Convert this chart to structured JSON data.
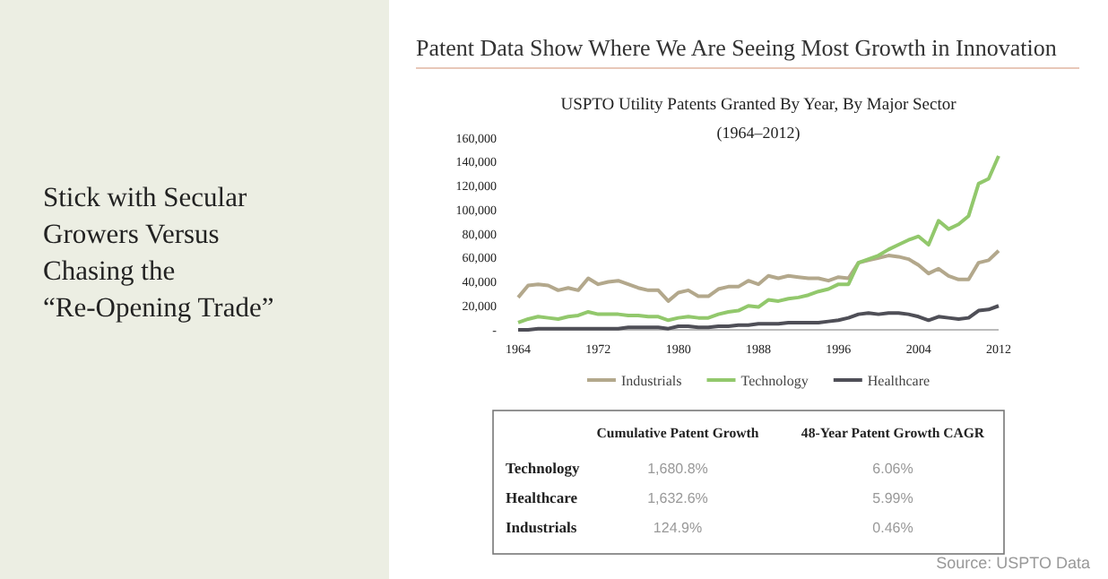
{
  "chart_data": [
    {
      "type": "line",
      "title": "USPTO Utility Patents Granted By Year, By Major Sector",
      "subtitle": "(1964–2012)",
      "x": [
        1964,
        1965,
        1966,
        1967,
        1968,
        1969,
        1970,
        1971,
        1972,
        1973,
        1974,
        1975,
        1976,
        1977,
        1978,
        1979,
        1980,
        1981,
        1982,
        1983,
        1984,
        1985,
        1986,
        1987,
        1988,
        1989,
        1990,
        1991,
        1992,
        1993,
        1994,
        1995,
        1996,
        1997,
        1998,
        1999,
        2000,
        2001,
        2002,
        2003,
        2004,
        2005,
        2006,
        2007,
        2008,
        2009,
        2010,
        2011,
        2012
      ],
      "series": [
        {
          "name": "Industrials",
          "color": "#b3a88c",
          "values": [
            27000,
            37000,
            38000,
            37000,
            33000,
            35000,
            33000,
            43000,
            38000,
            40000,
            41000,
            38000,
            35000,
            33000,
            33000,
            24000,
            31000,
            33000,
            28000,
            28000,
            34000,
            36000,
            36000,
            41000,
            38000,
            45000,
            43000,
            45000,
            44000,
            43000,
            43000,
            41000,
            44000,
            43000,
            56000,
            58000,
            60000,
            62000,
            61000,
            59000,
            54000,
            47000,
            51000,
            45000,
            42000,
            42000,
            56000,
            58000,
            66000
          ]
        },
        {
          "name": "Technology",
          "color": "#92c86c",
          "values": [
            6000,
            9000,
            11000,
            10000,
            9000,
            11000,
            12000,
            15000,
            13000,
            13000,
            13000,
            12000,
            12000,
            11000,
            11000,
            8000,
            10000,
            11000,
            10000,
            10000,
            13000,
            15000,
            16000,
            20000,
            19000,
            25000,
            24000,
            26000,
            27000,
            29000,
            32000,
            34000,
            38000,
            38000,
            56000,
            59000,
            62000,
            67000,
            71000,
            75000,
            78000,
            71000,
            91000,
            84000,
            88000,
            95000,
            122000,
            126000,
            145000
          ]
        },
        {
          "name": "Healthcare",
          "color": "#4f4f57",
          "values": [
            0,
            0,
            1000,
            1000,
            1000,
            1000,
            1000,
            1000,
            1000,
            1000,
            1000,
            2000,
            2000,
            2000,
            2000,
            1000,
            3000,
            3000,
            2000,
            2000,
            3000,
            3000,
            4000,
            4000,
            5000,
            5000,
            5000,
            6000,
            6000,
            6000,
            6000,
            7000,
            8000,
            10000,
            13000,
            14000,
            13000,
            14000,
            14000,
            13000,
            11000,
            8000,
            11000,
            10000,
            9000,
            10000,
            16000,
            17000,
            20000
          ]
        }
      ],
      "xlim": [
        1964,
        2012
      ],
      "xticks": [
        1964,
        1972,
        1980,
        1988,
        1996,
        2004,
        2012
      ],
      "ylim": [
        0,
        160000
      ],
      "yticks": [
        {
          "value": 0,
          "label": "-"
        },
        {
          "value": 20000,
          "label": "20,000"
        },
        {
          "value": 40000,
          "label": "40,000"
        },
        {
          "value": 60000,
          "label": "60,000"
        },
        {
          "value": 80000,
          "label": "80,000"
        },
        {
          "value": 100000,
          "label": "100,000"
        },
        {
          "value": 120000,
          "label": "120,000"
        },
        {
          "value": 140000,
          "label": "140,000"
        },
        {
          "value": 160000,
          "label": "160,000"
        }
      ],
      "legend": "bottom",
      "grid": false,
      "marker": "none",
      "line_style": "solid",
      "annotations": [
        "Stick with Secular Growers Versus Chasing the “Re-Opening Trade”",
        "Patent Data Show Where We Are Seeing Most Growth in Innovation",
        "Source: USPTO Data"
      ]
    },
    {
      "type": "other",
      "annotations": [
        "Cumulative Patent Growth",
        "48-Year Patent Growth CAGR",
        "Technology",
        "1,680.8%",
        "6.06%",
        "Healthcare",
        "1,632.6%",
        "5.99%",
        "Industrials",
        "124.9%",
        "0.46%"
      ]
    }
  ]
}
